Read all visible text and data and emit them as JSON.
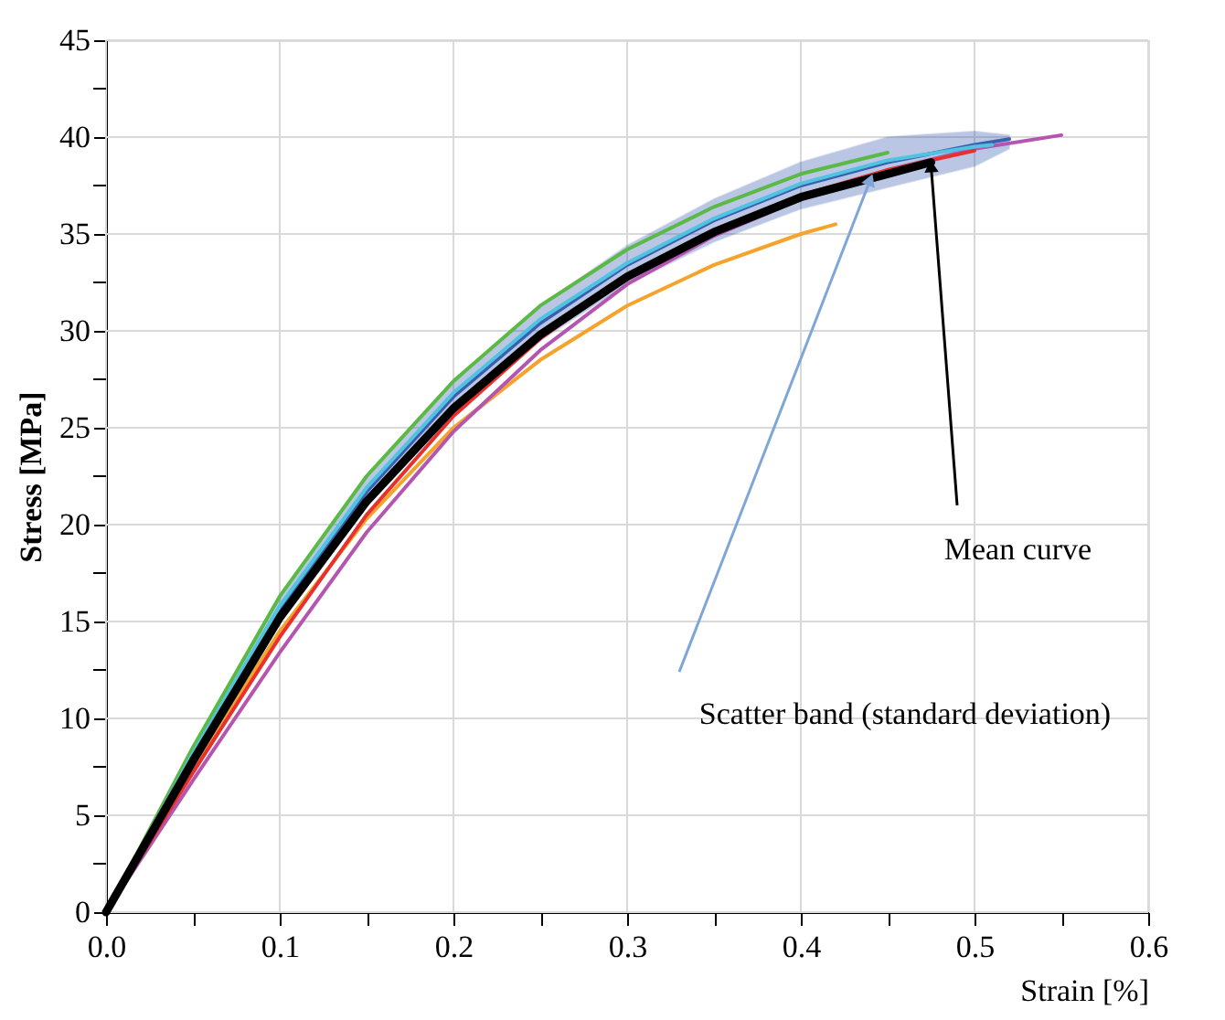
{
  "chart_data": {
    "type": "line",
    "xlabel": "Strain [%]",
    "ylabel": "Stress [MPa]",
    "xlim": [
      0,
      0.6
    ],
    "ylim": [
      0,
      45
    ],
    "xticks": [
      {
        "value": 0,
        "label": "0.0"
      },
      {
        "value": 0.05,
        "label": null
      },
      {
        "value": 0.1,
        "label": "0.1"
      },
      {
        "value": 0.15,
        "label": null
      },
      {
        "value": 0.2,
        "label": "0.2"
      },
      {
        "value": 0.25,
        "label": null
      },
      {
        "value": 0.3,
        "label": "0.3"
      },
      {
        "value": 0.35,
        "label": null
      },
      {
        "value": 0.4,
        "label": "0.4"
      },
      {
        "value": 0.45,
        "label": null
      },
      {
        "value": 0.5,
        "label": "0.5"
      },
      {
        "value": 0.55,
        "label": null
      },
      {
        "value": 0.6,
        "label": "0.6"
      }
    ],
    "yticks": [
      0,
      {
        "value": 2.5,
        "label": null
      },
      5,
      {
        "value": 7.5,
        "label": null
      },
      10,
      {
        "value": 12.5,
        "label": null
      },
      15,
      {
        "value": 17.5,
        "label": null
      },
      20,
      {
        "value": 22.5,
        "label": null
      },
      25,
      {
        "value": 27.5,
        "label": null
      },
      30,
      {
        "value": 32.5,
        "label": null
      },
      35,
      {
        "value": 37.5,
        "label": null
      },
      40,
      {
        "value": 42.5,
        "label": null
      },
      45
    ],
    "grid": true,
    "legend": false,
    "marker": "none",
    "line_style": "solid",
    "series": [
      {
        "color": "#3b5fb0",
        "x": [
          0,
          0.05,
          0.1,
          0.15,
          0.2,
          0.25,
          0.3,
          0.35,
          0.4,
          0.45,
          0.5,
          0.52
        ],
        "values": [
          0,
          8.0,
          15.6,
          21.7,
          26.6,
          30.4,
          33.4,
          35.7,
          37.5,
          38.7,
          39.6,
          39.9
        ],
        "lower": [
          0,
          7.6,
          15.0,
          21.0,
          25.8,
          29.5,
          32.4,
          34.6,
          36.3,
          37.4,
          38.5,
          39.4
        ],
        "upper": [
          0,
          8.4,
          16.2,
          22.4,
          27.4,
          31.3,
          34.4,
          36.8,
          38.7,
          40.0,
          40.3,
          40.1
        ]
      },
      {
        "color": "#5bb946",
        "x": [
          0,
          0.05,
          0.1,
          0.15,
          0.2,
          0.25,
          0.3,
          0.35,
          0.4,
          0.45
        ],
        "values": [
          0,
          8.5,
          16.3,
          22.5,
          27.4,
          31.3,
          34.2,
          36.4,
          38.1,
          39.2
        ]
      },
      {
        "color": "#f5a32a",
        "x": [
          0,
          0.05,
          0.1,
          0.15,
          0.2,
          0.25,
          0.3,
          0.35,
          0.4,
          0.42
        ],
        "values": [
          0,
          7.5,
          14.5,
          20.3,
          25.0,
          28.5,
          31.3,
          33.4,
          35.0,
          35.5
        ]
      },
      {
        "color": "#b455b0",
        "x": [
          0,
          0.05,
          0.1,
          0.15,
          0.2,
          0.25,
          0.3,
          0.35,
          0.4,
          0.45,
          0.5,
          0.55
        ],
        "values": [
          0,
          6.8,
          13.4,
          19.6,
          24.8,
          29.0,
          32.4,
          34.9,
          36.8,
          38.3,
          39.4,
          40.1
        ]
      },
      {
        "color": "#e8302e",
        "x": [
          0,
          0.05,
          0.1,
          0.15,
          0.2,
          0.25,
          0.3,
          0.35,
          0.4,
          0.45,
          0.5
        ],
        "values": [
          0,
          7.2,
          14.2,
          20.5,
          25.6,
          29.6,
          32.8,
          35.2,
          37.0,
          38.3,
          39.3
        ]
      },
      {
        "color": "#4fc3e0",
        "x": [
          0,
          0.05,
          0.1,
          0.15,
          0.2,
          0.25,
          0.3,
          0.35,
          0.4,
          0.45,
          0.5,
          0.51
        ],
        "values": [
          0,
          8.2,
          15.8,
          21.9,
          26.8,
          30.6,
          33.5,
          35.8,
          37.6,
          38.8,
          39.5,
          39.6
        ]
      },
      {
        "color": "#000000",
        "x": [
          0,
          0.05,
          0.1,
          0.15,
          0.2,
          0.25,
          0.3,
          0.35,
          0.4,
          0.45,
          0.475
        ],
        "values": [
          0,
          7.8,
          15.2,
          21.2,
          26.0,
          29.8,
          32.8,
          35.1,
          36.9,
          38.1,
          38.7
        ]
      }
    ],
    "annotations": [
      {
        "text": "Mean curve",
        "x": 0.475,
        "y": 38.5
      },
      {
        "text": "Scatter band (standard deviation)",
        "x": 0.44,
        "y": 37.8
      }
    ]
  }
}
